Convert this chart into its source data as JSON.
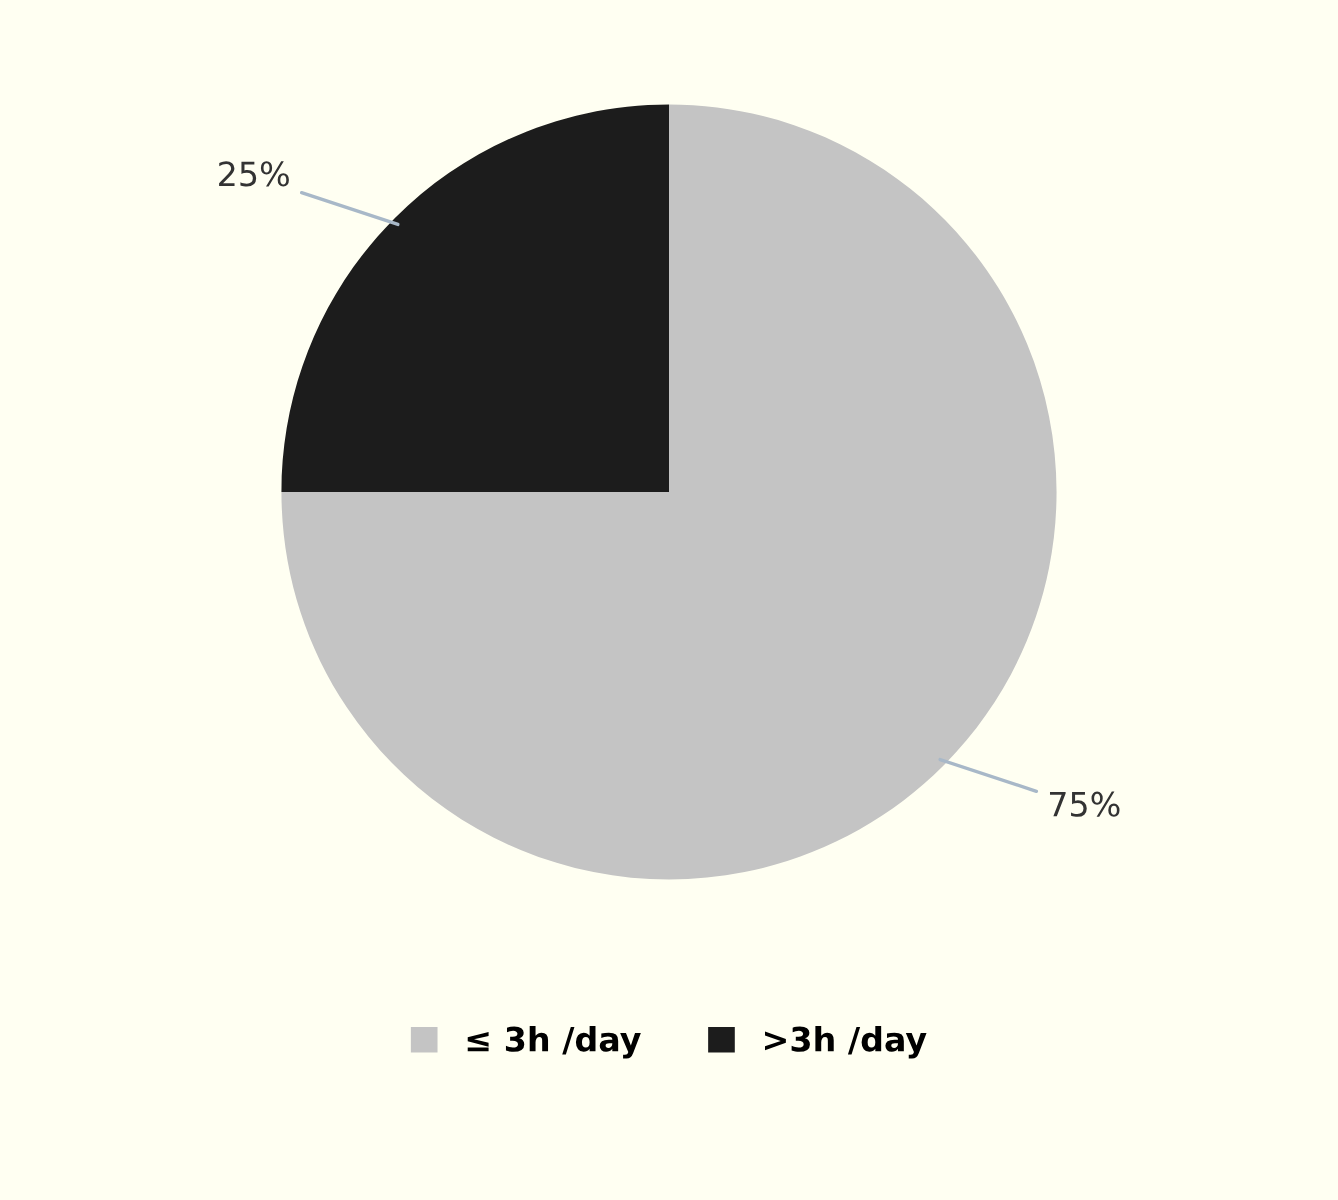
{
  "chart_data": {
    "type": "pie",
    "categories": [
      "≤ 3h /day",
      ">3h /day"
    ],
    "values": [
      75,
      25
    ],
    "colors": [
      "#c4c4c4",
      "#1c1c1c"
    ],
    "value_labels": [
      "75%",
      "25%"
    ],
    "legend": "bottom"
  }
}
